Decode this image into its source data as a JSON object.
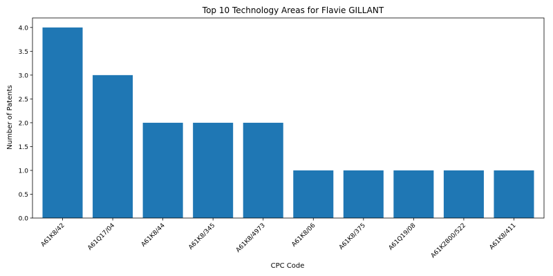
{
  "chart_data": {
    "type": "bar",
    "title": "Top 10 Technology Areas for Flavie GILLANT",
    "xlabel": "CPC Code",
    "ylabel": "Number of Patents",
    "categories": [
      "A61K8/42",
      "A61Q17/04",
      "A61K8/44",
      "A61K8/345",
      "A61K8/4973",
      "A61K8/06",
      "A61K8/375",
      "A61Q19/08",
      "A61K2800/522",
      "A61K8/411"
    ],
    "values": [
      4,
      3,
      2,
      2,
      2,
      1,
      1,
      1,
      1,
      1
    ],
    "ylim": [
      0,
      4.2
    ],
    "yticks": [
      "0.0",
      "0.5",
      "1.0",
      "1.5",
      "2.0",
      "2.5",
      "3.0",
      "3.5",
      "4.0"
    ],
    "grid": false,
    "bar_color": "#1f77b4"
  }
}
